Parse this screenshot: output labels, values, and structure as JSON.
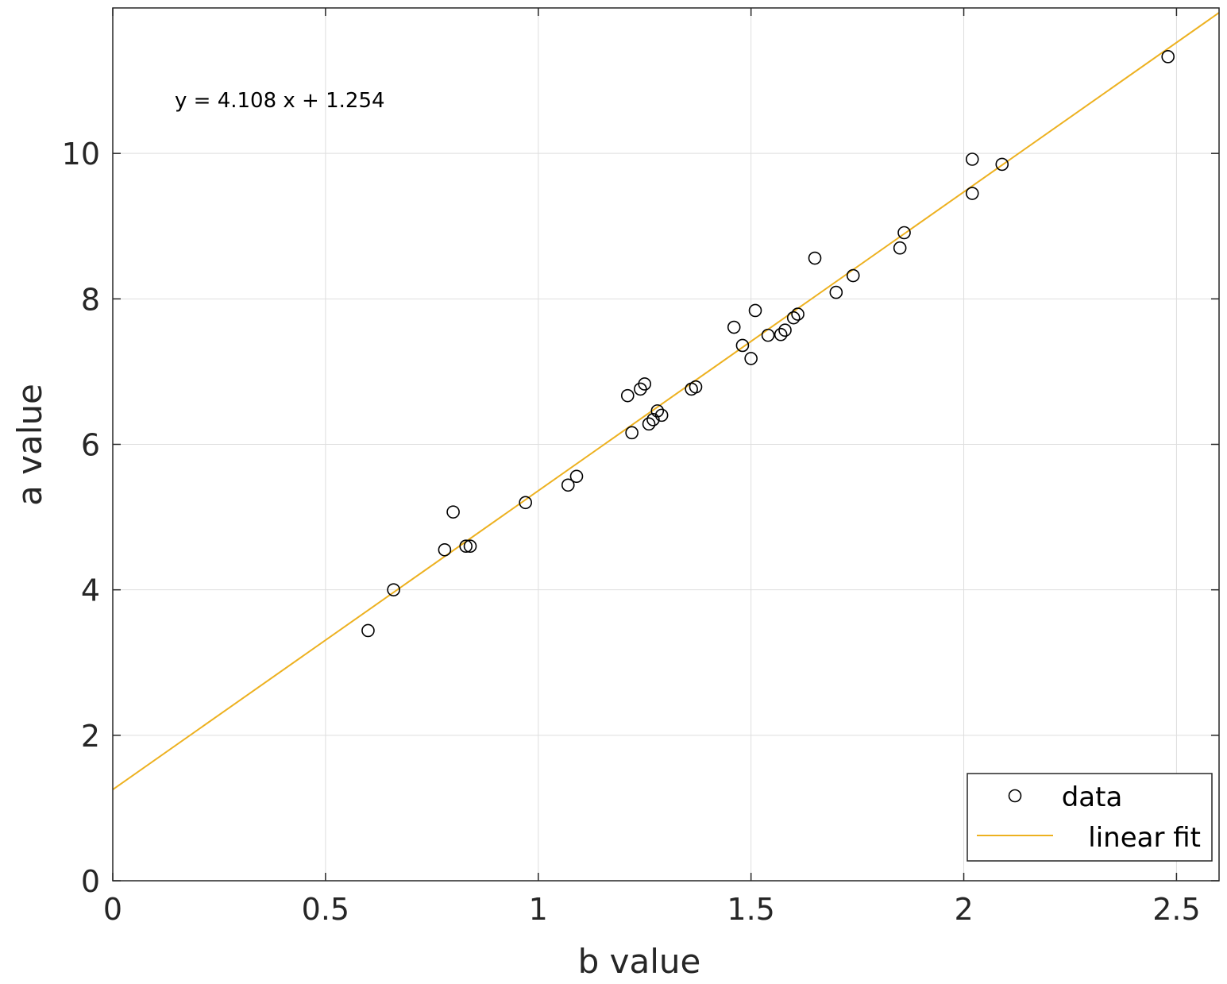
{
  "chart_data": {
    "type": "scatter",
    "title": "",
    "xlabel": "b value",
    "ylabel": "a value",
    "xlim": [
      0,
      2.6
    ],
    "ylim": [
      0,
      12
    ],
    "xticks": [
      0,
      0.5,
      1,
      1.5,
      2,
      2.5
    ],
    "xtick_labels": [
      "0",
      "0.5",
      "1",
      "1.5",
      "2",
      "2.5"
    ],
    "yticks": [
      0,
      2,
      4,
      6,
      8,
      10
    ],
    "ytick_labels": [
      "0",
      "2",
      "4",
      "6",
      "8",
      "10"
    ],
    "grid": true,
    "legend_position": "bottom-right",
    "annotation": "y = 4.108 x + 1.254",
    "series": [
      {
        "name": "data",
        "kind": "scatter",
        "marker": "open-circle",
        "color": "#000000",
        "points": [
          [
            0.6,
            3.44
          ],
          [
            0.66,
            4.0
          ],
          [
            0.78,
            4.55
          ],
          [
            0.8,
            5.07
          ],
          [
            0.83,
            4.6
          ],
          [
            0.84,
            4.6
          ],
          [
            0.97,
            5.2
          ],
          [
            1.07,
            5.44
          ],
          [
            1.09,
            5.56
          ],
          [
            1.21,
            6.67
          ],
          [
            1.22,
            6.16
          ],
          [
            1.24,
            6.76
          ],
          [
            1.25,
            6.83
          ],
          [
            1.26,
            6.28
          ],
          [
            1.27,
            6.34
          ],
          [
            1.28,
            6.46
          ],
          [
            1.29,
            6.4
          ],
          [
            1.36,
            6.76
          ],
          [
            1.37,
            6.79
          ],
          [
            1.46,
            7.61
          ],
          [
            1.48,
            7.36
          ],
          [
            1.5,
            7.18
          ],
          [
            1.51,
            7.84
          ],
          [
            1.54,
            7.5
          ],
          [
            1.57,
            7.51
          ],
          [
            1.58,
            7.57
          ],
          [
            1.6,
            7.74
          ],
          [
            1.61,
            7.79
          ],
          [
            1.65,
            8.56
          ],
          [
            1.7,
            8.09
          ],
          [
            1.74,
            8.32
          ],
          [
            1.85,
            8.7
          ],
          [
            1.86,
            8.91
          ],
          [
            2.02,
            9.92
          ],
          [
            2.02,
            9.45
          ],
          [
            2.09,
            9.85
          ],
          [
            2.48,
            11.33
          ]
        ]
      },
      {
        "name": "linear fit",
        "kind": "line",
        "color": "#EDB120",
        "slope": 4.108,
        "intercept": 1.254
      }
    ]
  }
}
